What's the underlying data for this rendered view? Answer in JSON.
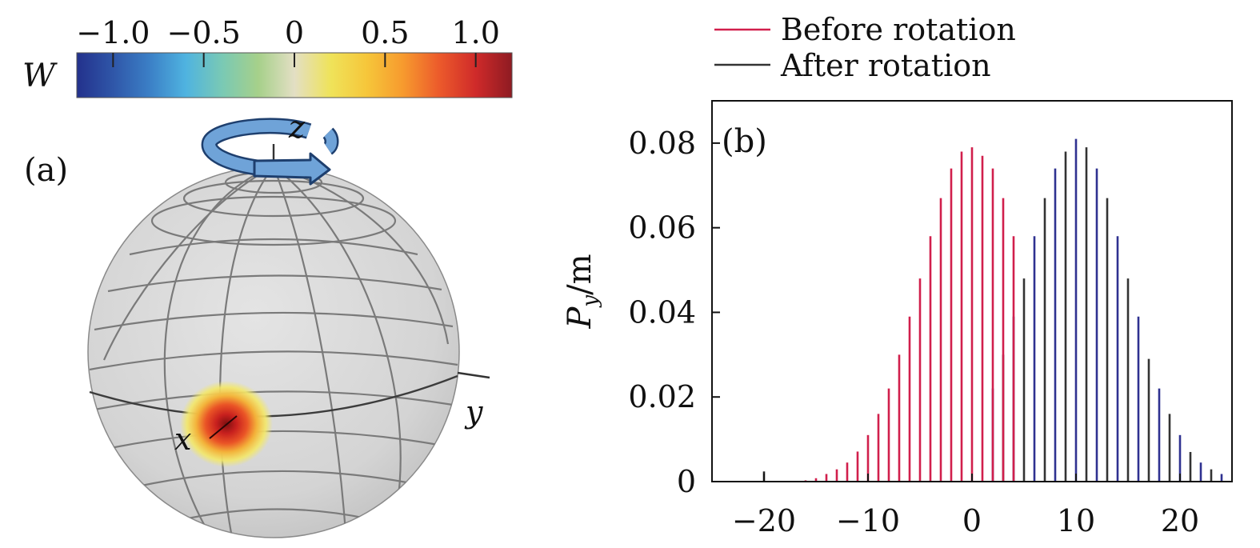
{
  "colorbar": {
    "label": "W",
    "ticks": [
      "−1.0",
      "−0.5",
      "0",
      "0.5",
      "1.0"
    ],
    "tick_values": [
      -1.0,
      -0.5,
      0,
      0.5,
      1.0
    ],
    "range": [
      -1.2,
      1.2
    ],
    "colormap": [
      "#23318c",
      "#2f56a8",
      "#3b7fc6",
      "#4fb3e0",
      "#79c9b5",
      "#a6d08a",
      "#e3dfc4",
      "#efe35a",
      "#f6c63a",
      "#f79a2e",
      "#ec5a2b",
      "#cf2a2a",
      "#8e1b22"
    ]
  },
  "panel_a": {
    "label": "(a)",
    "axes": {
      "x": "x",
      "y": "y",
      "z": "z"
    },
    "sphere_color": "#d6d6d6",
    "gridline_color": "#7a7a7a",
    "rotation_arrow_color": "#6fa3d8",
    "peak_colors": [
      "#f3e86a",
      "#f2a23a",
      "#d8241e",
      "#7d0f10"
    ]
  },
  "legend": {
    "items": [
      {
        "label": "Before rotation",
        "color": "#d11f4c"
      },
      {
        "label": "After rotation",
        "color": "#333333"
      }
    ]
  },
  "chart_data": {
    "type": "bar",
    "panel_label": "(b)",
    "ylabel_main": "P",
    "ylabel_sub": "y",
    "ylabel_rest": "/m",
    "xlim": [
      -25,
      25
    ],
    "ylim": [
      0,
      0.09
    ],
    "xticks": [
      -20,
      -10,
      0,
      10,
      20
    ],
    "xtick_labels": [
      "−20",
      "−10",
      "0",
      "10",
      "20"
    ],
    "yticks": [
      0,
      0.02,
      0.04,
      0.06,
      0.08
    ],
    "ytick_labels": [
      "0",
      "0.02",
      "0.04",
      "0.06",
      "0.08"
    ],
    "colors": {
      "before": "#d11f4c",
      "after": "#333333",
      "after_alt": "#2f3190"
    },
    "series": [
      {
        "name": "Before rotation",
        "x": [
          -20,
          -16,
          -15,
          -14,
          -13,
          -12,
          -11,
          -10,
          -9,
          -8,
          -7,
          -6,
          -5,
          -4,
          -3,
          -2,
          -1,
          0,
          1,
          2,
          3,
          4
        ],
        "values": [
          0.0024,
          0.0003,
          0.0008,
          0.0018,
          0.0029,
          0.0045,
          0.0071,
          0.011,
          0.016,
          0.022,
          0.03,
          0.039,
          0.048,
          0.058,
          0.067,
          0.074,
          0.078,
          0.079,
          0.077,
          0.074,
          0.067,
          0.058
        ]
      },
      {
        "name": "After rotation",
        "x": [
          2,
          3,
          4,
          5,
          6,
          7,
          8,
          9,
          10,
          11,
          12,
          13,
          14,
          15,
          16,
          17,
          18,
          19,
          20,
          21,
          22,
          23,
          24
        ],
        "values": [
          0.022,
          0.03,
          0.039,
          0.048,
          0.058,
          0.067,
          0.074,
          0.078,
          0.081,
          0.079,
          0.074,
          0.067,
          0.058,
          0.048,
          0.039,
          0.029,
          0.022,
          0.016,
          0.011,
          0.007,
          0.0045,
          0.0029,
          0.0018
        ]
      }
    ]
  }
}
